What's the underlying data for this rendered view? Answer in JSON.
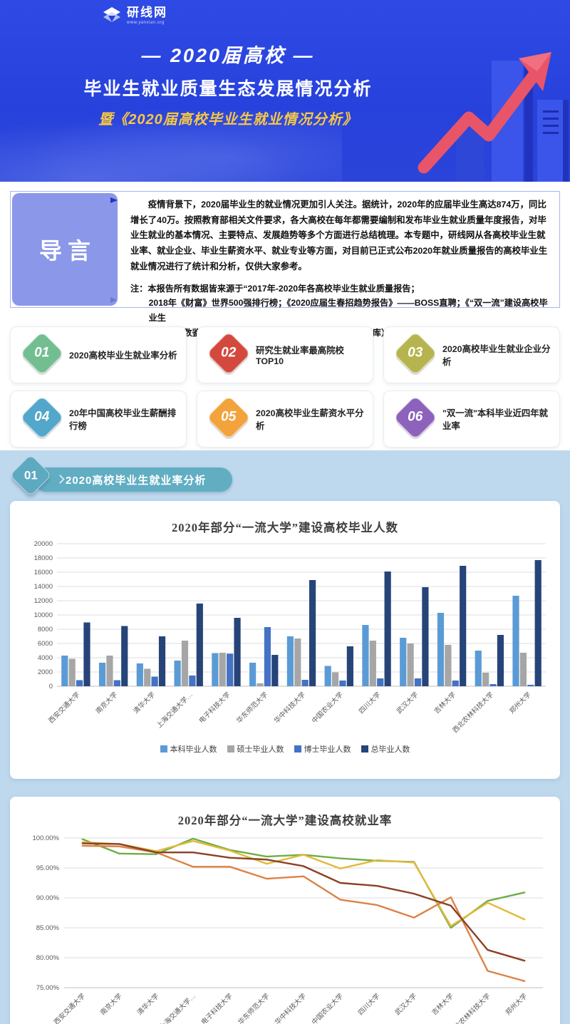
{
  "colors": {
    "header_bg": "#2741dc",
    "header_gold": "#f6c844",
    "arrow_red": "#e85568",
    "intro_block": "#8b97e8",
    "section_teal": "#61aec3",
    "lower_bg": "#bed8ee"
  },
  "header": {
    "logo_brand": "研线网",
    "logo_url": "www.yanxian.org",
    "title_line1": "— 2020届高校 —",
    "title_line2": "毕业生就业质量生态发展情况分析",
    "title_line3": "暨《2020届高校毕业生就业情况分析》"
  },
  "intro": {
    "label": "导言",
    "paragraph": "疫情背景下，2020届毕业生的就业情况更加引人关注。据统计，2020年的应届毕业生高达874万，同比增长了40万。按照教育部相关文件要求，各大高校在每年都需要编制和发布毕业生就业质量年度报告，对毕业生就业的基本情况、主要特点、发展趋势等多个方面进行总结梳理。本专题中，研线网从各高校毕业生就业率、就业企业、毕业生薪资水平、就业专业等方面，对目前已正式公布2020年就业质量报告的高校毕业生就业情况进行了统计和分析，仅供大家参考。",
    "note_line1": "注：本报告所有数据皆来源于“2017年-2020年各高校毕业生就业质量报告；",
    "note_line2": "2018年《财富》世界500强排行榜；《2020应届生春招趋势报告》——BOSS直聘；《“双一流”建设高校毕业生",
    "note_line3": "就业匹配数鉴》——广州日报数据和数字化研究院（GDI智库）”。如有疑问，请及时联系我们!"
  },
  "topics": [
    {
      "num": "01",
      "label": "2020高校毕业生就业率分析",
      "color": "#72be90"
    },
    {
      "num": "02",
      "label": "研究生就业率最高院校TOP10",
      "color": "#d4493e"
    },
    {
      "num": "03",
      "label": "2020高校毕业生就业企业分析",
      "color": "#b6b44f"
    },
    {
      "num": "04",
      "label": "20年中国高校毕业生薪酬排行榜",
      "color": "#52a7ca"
    },
    {
      "num": "05",
      "label": "2020高校毕业生薪资水平分析",
      "color": "#f2a33b"
    },
    {
      "num": "06",
      "label": "\"双一流\"本科毕业近四年就业率",
      "color": "#8c62bc"
    }
  ],
  "section": {
    "num": "01",
    "title": "2020高校毕业生就业率分析"
  },
  "chart_data": [
    {
      "type": "bar",
      "title": "2020年部分“一流大学”建设高校毕业人数",
      "categories": [
        "西安交通大学",
        "南京大学",
        "清华大学",
        "上海交通大学…",
        "电子科技大学",
        "华东师范大学",
        "华中科技大学",
        "中国农业大学",
        "四川大学",
        "武汉大学",
        "吉林大学",
        "西北农林科技大学",
        "郑州大学"
      ],
      "series": [
        {
          "name": "本科毕业人数",
          "color": "#5b9bd5",
          "values": [
            4300,
            3300,
            3200,
            3600,
            4650,
            3300,
            7000,
            2850,
            8600,
            6800,
            10300,
            5000,
            12700
          ]
        },
        {
          "name": "硕士毕业人数",
          "color": "#a6a6a6",
          "values": [
            3850,
            4300,
            2450,
            6400,
            4700,
            400,
            6700,
            1950,
            6400,
            6000,
            5800,
            1900,
            4700
          ]
        },
        {
          "name": "博士毕业人数",
          "color": "#4472c4",
          "values": [
            850,
            850,
            1350,
            1500,
            4580,
            8300,
            900,
            800,
            1100,
            1100,
            800,
            300,
            200
          ]
        },
        {
          "name": "总毕业人数",
          "color": "#264478",
          "values": [
            8950,
            8450,
            7000,
            11600,
            9600,
            4400,
            14900,
            5600,
            16100,
            13900,
            16900,
            7200,
            17700
          ]
        }
      ],
      "ylim": [
        0,
        20000
      ],
      "ystep": 2000,
      "grid": true,
      "legend_position": "bottom"
    },
    {
      "type": "line",
      "title": "2020年部分“一流大学”建设高校就业率",
      "categories": [
        "西安交通大学",
        "南京大学",
        "清华大学",
        "上海交通大学…",
        "电子科技大学",
        "华东师范大学",
        "华中科技大学",
        "中国农业大学",
        "四川大学",
        "武汉大学",
        "吉林大学",
        "西北农林科技大学",
        "郑州大学"
      ],
      "series": [
        {
          "name": "green-line",
          "color": "#70ad47",
          "values": [
            99.8,
            97.4,
            97.3,
            99.9,
            98.0,
            96.9,
            97.2,
            96.6,
            96.2,
            96.0,
            85.0,
            89.5,
            90.9
          ]
        },
        {
          "name": "yellow-line",
          "color": "#e2b93b",
          "values": [
            99.3,
            99.0,
            97.8,
            99.5,
            97.9,
            95.7,
            97.2,
            94.9,
            96.3,
            95.9,
            85.3,
            89.2,
            86.4
          ]
        },
        {
          "name": "orange-line",
          "color": "#dc8246",
          "values": [
            98.7,
            98.6,
            97.6,
            95.2,
            95.2,
            93.2,
            93.6,
            89.7,
            88.8,
            86.7,
            90.1,
            77.8,
            76.1
          ]
        },
        {
          "name": "brown-line",
          "color": "#8b4125",
          "values": [
            99.1,
            99.0,
            97.6,
            97.6,
            96.7,
            96.4,
            95.3,
            92.5,
            92.0,
            90.7,
            88.7,
            81.3,
            79.5
          ]
        }
      ],
      "ylim": [
        75,
        100
      ],
      "ystep": 5,
      "ytick_format": "percent2",
      "grid": true,
      "legend_position": "none"
    }
  ]
}
